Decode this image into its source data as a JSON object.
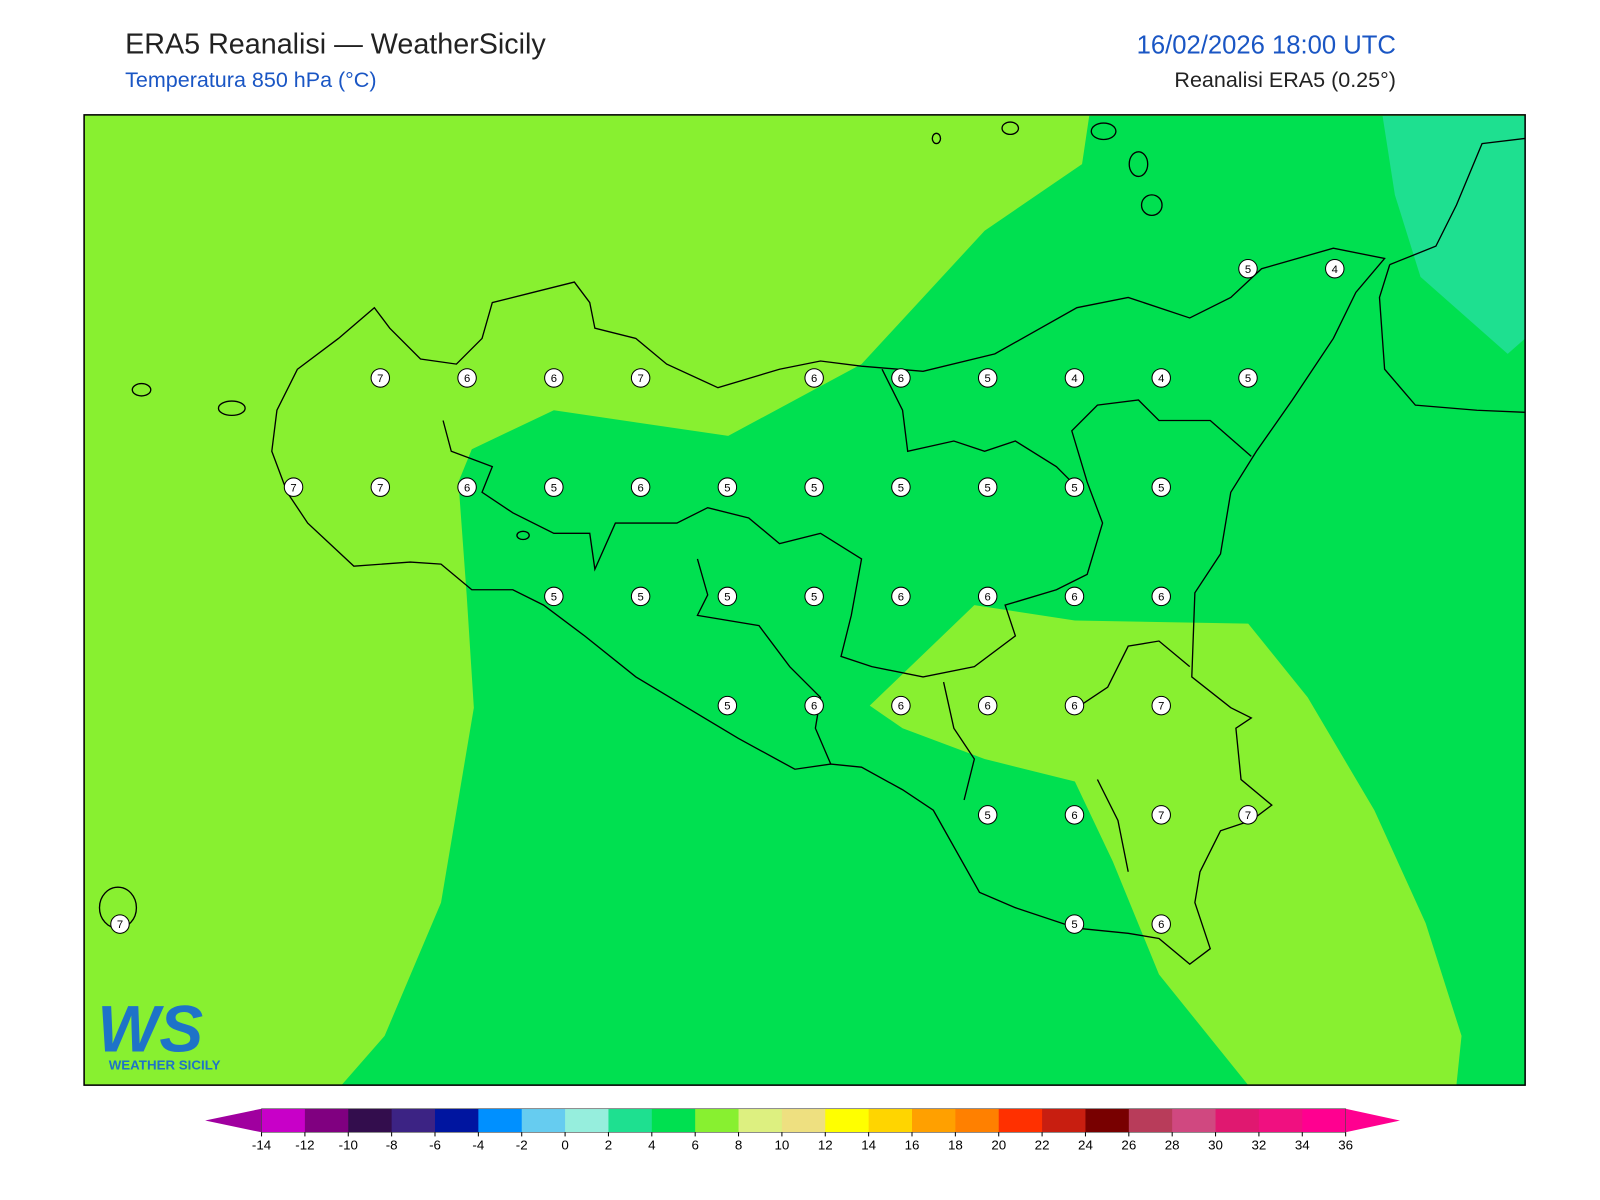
{
  "header": {
    "title": "ERA5 Reanalisi — WeatherSicily",
    "subtitle": "Temperatura 850 hPa (°C)",
    "datetime": "16/02/2026 18:00 UTC",
    "source": "Reanalisi ERA5 (0.25°)"
  },
  "stations": {
    "grid": [
      [
        null,
        null,
        null,
        null,
        null,
        null,
        null,
        null,
        null,
        null,
        null,
        null,
        null,
        5,
        4
      ],
      [
        null,
        null,
        null,
        7,
        6,
        6,
        7,
        null,
        6,
        6,
        5,
        4,
        4,
        5,
        null
      ],
      [
        null,
        null,
        7,
        7,
        6,
        5,
        6,
        5,
        5,
        5,
        5,
        5,
        5,
        null,
        null
      ],
      [
        null,
        null,
        null,
        null,
        null,
        5,
        5,
        5,
        5,
        6,
        6,
        6,
        6,
        null,
        null
      ],
      [
        null,
        null,
        null,
        null,
        null,
        null,
        null,
        5,
        6,
        6,
        6,
        6,
        7,
        null,
        null
      ],
      [
        null,
        null,
        null,
        null,
        null,
        null,
        null,
        null,
        null,
        null,
        5,
        6,
        7,
        7,
        null
      ],
      [
        7,
        null,
        null,
        null,
        null,
        null,
        null,
        null,
        null,
        null,
        null,
        5,
        6,
        null,
        null
      ]
    ]
  },
  "colorbar": {
    "ticks": [
      -14,
      -12,
      -10,
      -8,
      -6,
      -4,
      -2,
      0,
      2,
      4,
      6,
      8,
      10,
      12,
      14,
      16,
      18,
      20,
      22,
      24,
      26,
      28,
      30,
      32,
      34,
      36
    ],
    "colors": [
      "#a0009f",
      "#c800c8",
      "#800080",
      "#330d4d",
      "#3c2384",
      "#0015a0",
      "#0090ff",
      "#66ccf0",
      "#96eedd",
      "#1ee090",
      "#00e050",
      "#88f030",
      "#ddf080",
      "#eee080",
      "#ffff00",
      "#ffd500",
      "#ffa000",
      "#ff8000",
      "#ff3000",
      "#c81e10",
      "#780000",
      "#b83c5a",
      "#d04880",
      "#e01870",
      "#f01080",
      "#ff0090",
      "#ff0090"
    ]
  },
  "logo": {
    "mark": "WS",
    "tagline": "WEATHER SICILY"
  }
}
